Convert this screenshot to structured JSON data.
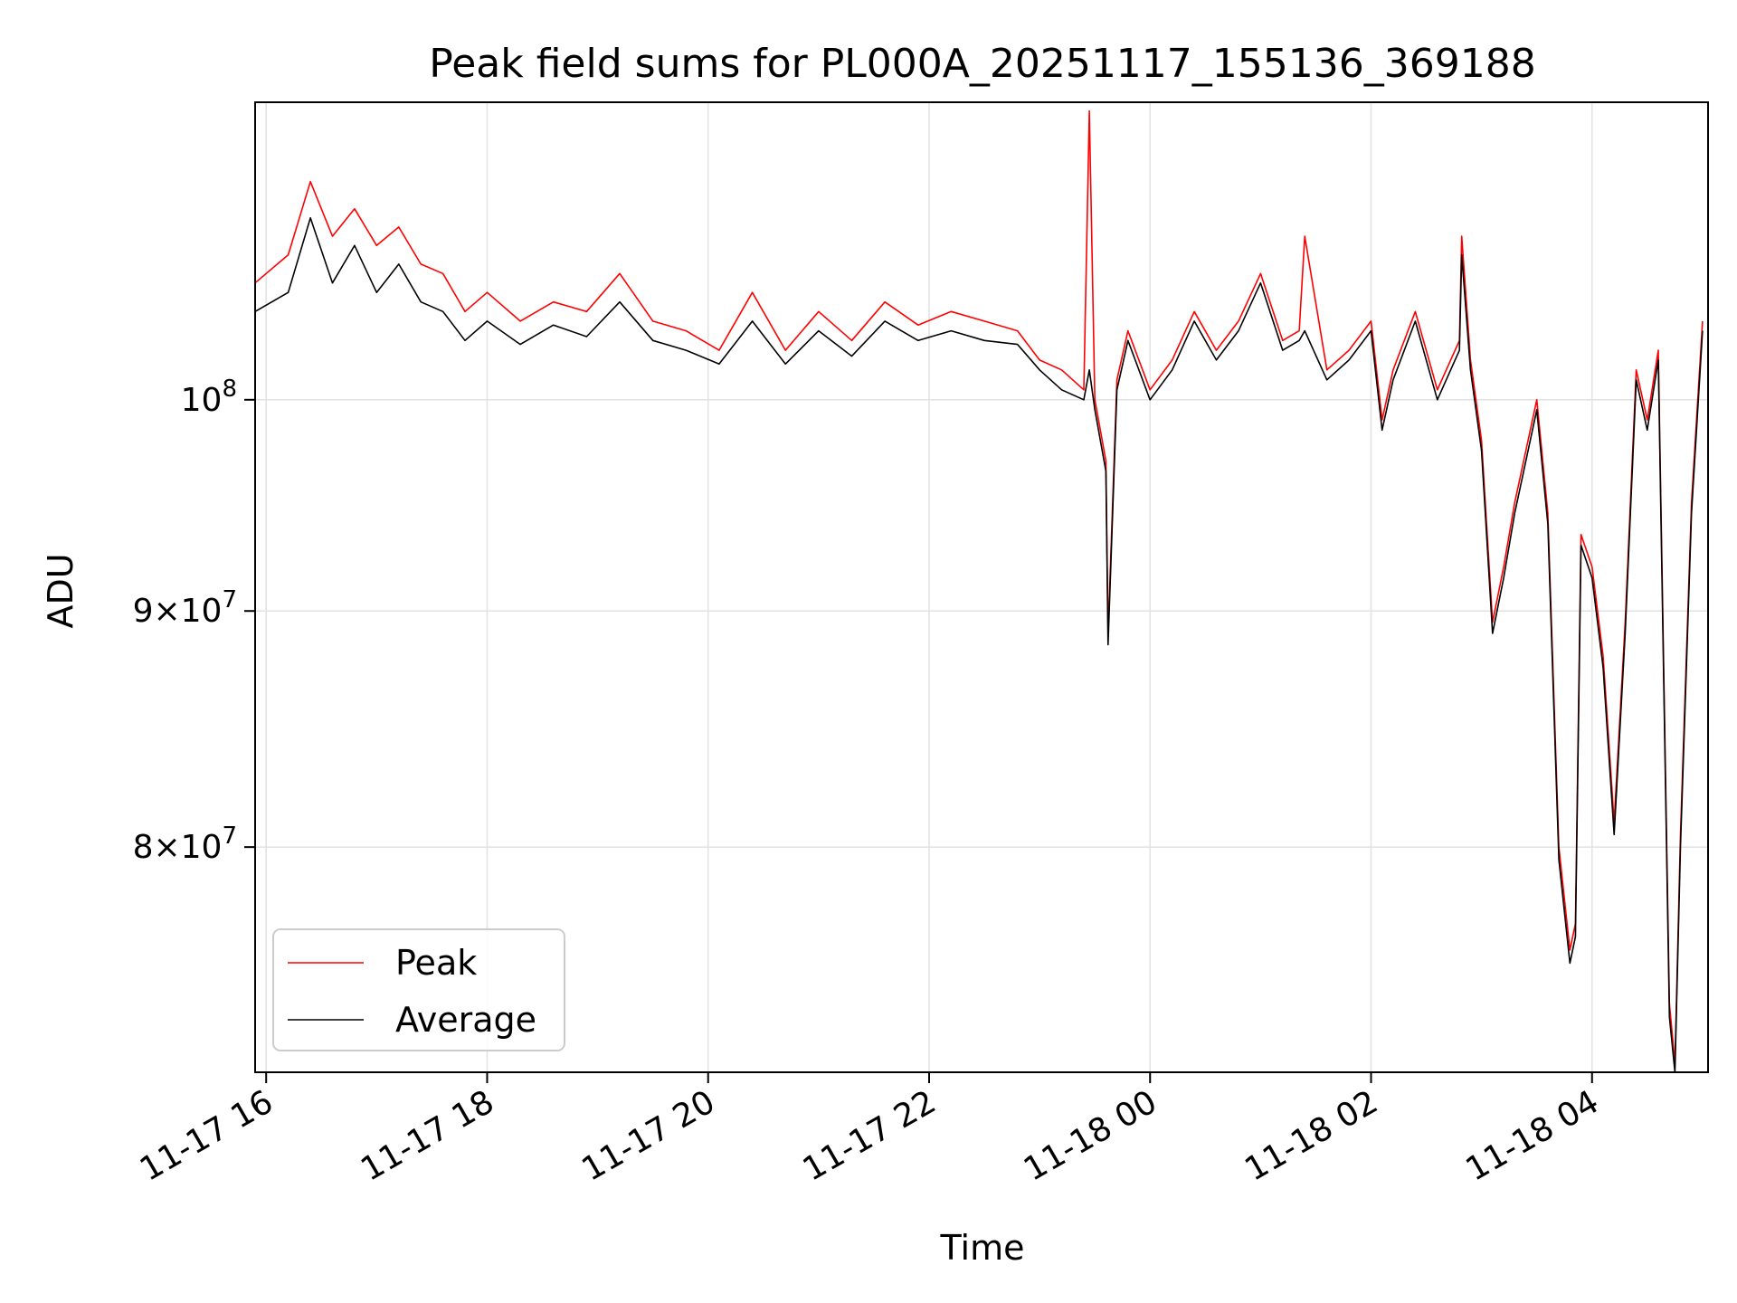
{
  "chart_data": {
    "type": "line",
    "title": "Peak field sums for PL000A_20251117_155136_369188",
    "xlabel": "Time",
    "ylabel": "ADU",
    "yscale": "log",
    "grid": true,
    "legend_position": "lower-left",
    "x_unit": "hours since 2025-11-17 00:00",
    "xlim": [
      15.9,
      29.05
    ],
    "ylim": [
      71500000,
      116000000
    ],
    "x_ticks": [
      {
        "value": 16,
        "label": "11-17 16"
      },
      {
        "value": 18,
        "label": "11-17 18"
      },
      {
        "value": 20,
        "label": "11-17 20"
      },
      {
        "value": 22,
        "label": "11-17 22"
      },
      {
        "value": 24,
        "label": "11-18 00"
      },
      {
        "value": 26,
        "label": "11-18 02"
      },
      {
        "value": 28,
        "label": "11-18 04"
      }
    ],
    "y_ticks": [
      {
        "value": 80000000,
        "mant": "8",
        "exp": "7"
      },
      {
        "value": 90000000,
        "mant": "9",
        "exp": "7"
      },
      {
        "value": 100000000,
        "mant": "10",
        "exp": "8"
      }
    ],
    "series": [
      {
        "name": "Peak",
        "color": "#ff0000",
        "x": [
          15.9,
          16.2,
          16.4,
          16.6,
          16.8,
          17.0,
          17.2,
          17.4,
          17.6,
          17.8,
          18.0,
          18.3,
          18.6,
          18.9,
          19.2,
          19.5,
          19.8,
          20.1,
          20.4,
          20.7,
          21.0,
          21.3,
          21.6,
          21.9,
          22.2,
          22.5,
          22.8,
          23.0,
          23.2,
          23.4,
          23.45,
          23.5,
          23.6,
          23.62,
          23.7,
          23.8,
          24.0,
          24.2,
          24.4,
          24.6,
          24.8,
          25.0,
          25.2,
          25.35,
          25.4,
          25.6,
          25.8,
          26.0,
          26.1,
          26.2,
          26.4,
          26.6,
          26.8,
          26.82,
          26.9,
          27.0,
          27.1,
          27.2,
          27.3,
          27.5,
          27.6,
          27.7,
          27.8,
          27.85,
          27.9,
          28.0,
          28.1,
          28.2,
          28.3,
          28.4,
          28.5,
          28.6,
          28.7,
          28.75,
          28.8,
          28.9,
          29.0
        ],
        "y": [
          106000000,
          107500000,
          111500000,
          108500000,
          110000000,
          108000000,
          109000000,
          107000000,
          106500000,
          104500000,
          105500000,
          104000000,
          105000000,
          104500000,
          106500000,
          104000000,
          103500000,
          102500000,
          105500000,
          102500000,
          104500000,
          103000000,
          105000000,
          103800000,
          104500000,
          104000000,
          103500000,
          102000000,
          101500000,
          100500000,
          115500000,
          100000000,
          97000000,
          89000000,
          101000000,
          103500000,
          100500000,
          102000000,
          104500000,
          102500000,
          104000000,
          106500000,
          103000000,
          103500000,
          108500000,
          101500000,
          102500000,
          104000000,
          99000000,
          101500000,
          104500000,
          100500000,
          103000000,
          108500000,
          102000000,
          98000000,
          89500000,
          92000000,
          95000000,
          100000000,
          94500000,
          80000000,
          76000000,
          77000000,
          93500000,
          92000000,
          88000000,
          81000000,
          89500000,
          101500000,
          99000000,
          102500000,
          74000000,
          71800000,
          80500000,
          95000000,
          104000000
        ]
      },
      {
        "name": "Average",
        "color": "#000000",
        "x": [
          15.9,
          16.2,
          16.4,
          16.6,
          16.8,
          17.0,
          17.2,
          17.4,
          17.6,
          17.8,
          18.0,
          18.3,
          18.6,
          18.9,
          19.2,
          19.5,
          19.8,
          20.1,
          20.4,
          20.7,
          21.0,
          21.3,
          21.6,
          21.9,
          22.2,
          22.5,
          22.8,
          23.0,
          23.2,
          23.4,
          23.45,
          23.5,
          23.6,
          23.62,
          23.7,
          23.8,
          24.0,
          24.2,
          24.4,
          24.6,
          24.8,
          25.0,
          25.2,
          25.35,
          25.4,
          25.6,
          25.8,
          26.0,
          26.1,
          26.2,
          26.4,
          26.6,
          26.8,
          26.82,
          26.9,
          27.0,
          27.1,
          27.2,
          27.3,
          27.5,
          27.6,
          27.7,
          27.8,
          27.85,
          27.9,
          28.0,
          28.1,
          28.2,
          28.3,
          28.4,
          28.5,
          28.6,
          28.7,
          28.75,
          28.8,
          28.9,
          29.0
        ],
        "y": [
          104500000,
          105500000,
          109500000,
          106000000,
          108000000,
          105500000,
          107000000,
          105000000,
          104500000,
          103000000,
          104000000,
          102800000,
          103800000,
          103200000,
          105000000,
          103000000,
          102500000,
          101800000,
          104000000,
          101800000,
          103500000,
          102200000,
          104000000,
          103000000,
          103500000,
          103000000,
          102800000,
          101500000,
          100500000,
          100000000,
          101500000,
          99500000,
          96500000,
          88500000,
          100500000,
          103000000,
          100000000,
          101500000,
          104000000,
          102000000,
          103500000,
          106000000,
          102500000,
          103000000,
          103500000,
          101000000,
          102000000,
          103500000,
          98500000,
          101000000,
          104000000,
          100000000,
          102500000,
          107500000,
          101500000,
          97500000,
          89000000,
          91500000,
          94500000,
          99500000,
          94000000,
          79500000,
          75500000,
          76500000,
          93000000,
          91500000,
          87500000,
          80500000,
          89000000,
          101000000,
          98500000,
          102000000,
          73500000,
          71500000,
          80000000,
          94500000,
          103500000
        ]
      }
    ]
  }
}
